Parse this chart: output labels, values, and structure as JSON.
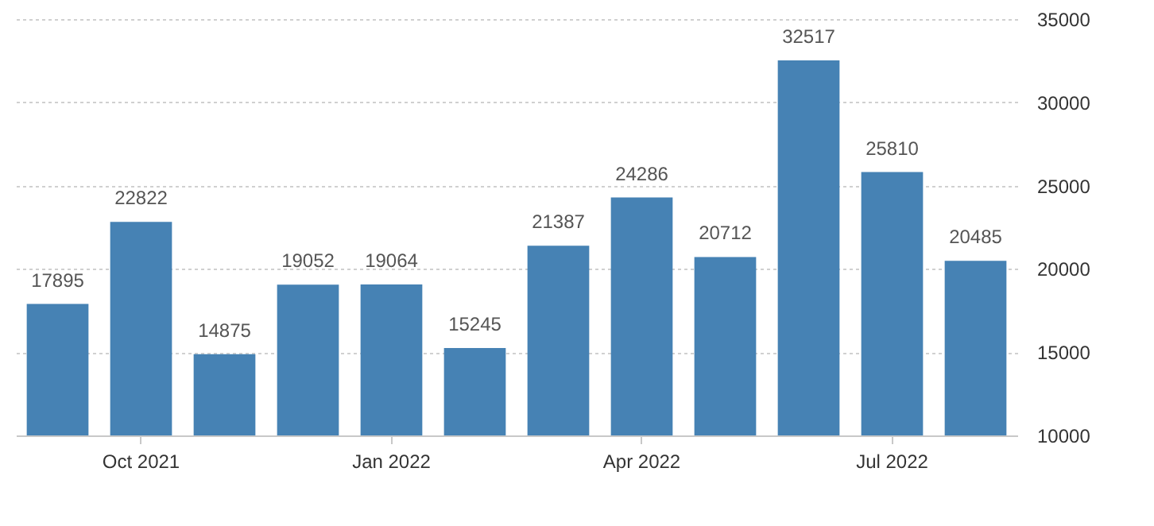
{
  "chart_data": {
    "type": "bar",
    "categories": [
      null,
      "Oct 2021",
      null,
      null,
      "Jan 2022",
      null,
      null,
      "Apr 2022",
      null,
      null,
      "Jul 2022",
      null
    ],
    "values": [
      17895,
      22822,
      14875,
      19052,
      19064,
      15245,
      21387,
      24286,
      20712,
      32517,
      25810,
      20485
    ],
    "color": "#4682b4",
    "ylim": [
      10000,
      35000
    ],
    "yticks": [
      10000,
      15000,
      20000,
      25000,
      30000,
      35000
    ],
    "grid": "y",
    "data_labels": true
  }
}
